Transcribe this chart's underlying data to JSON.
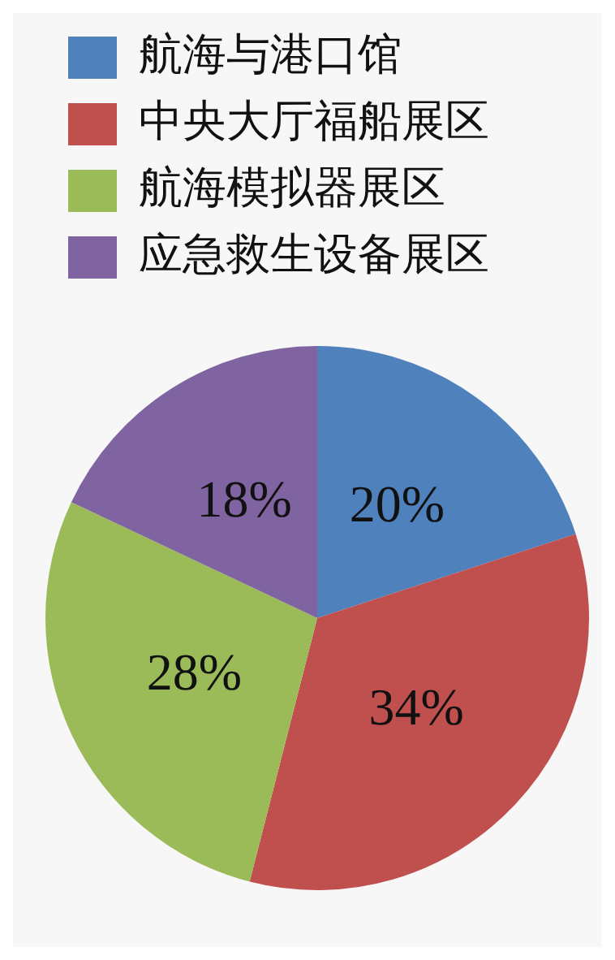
{
  "chart_data": {
    "type": "pie",
    "categories": [
      "航海与港口馆",
      "中央大厅福船展区",
      "航海模拟器展区",
      "应急救生设备展区"
    ],
    "values": [
      20,
      34,
      28,
      18
    ],
    "value_labels": [
      "20%",
      "34%",
      "28%",
      "18%"
    ],
    "colors": [
      "#4f81bd",
      "#c0504d",
      "#9bbb59",
      "#8064a2"
    ],
    "legend": "top left"
  }
}
